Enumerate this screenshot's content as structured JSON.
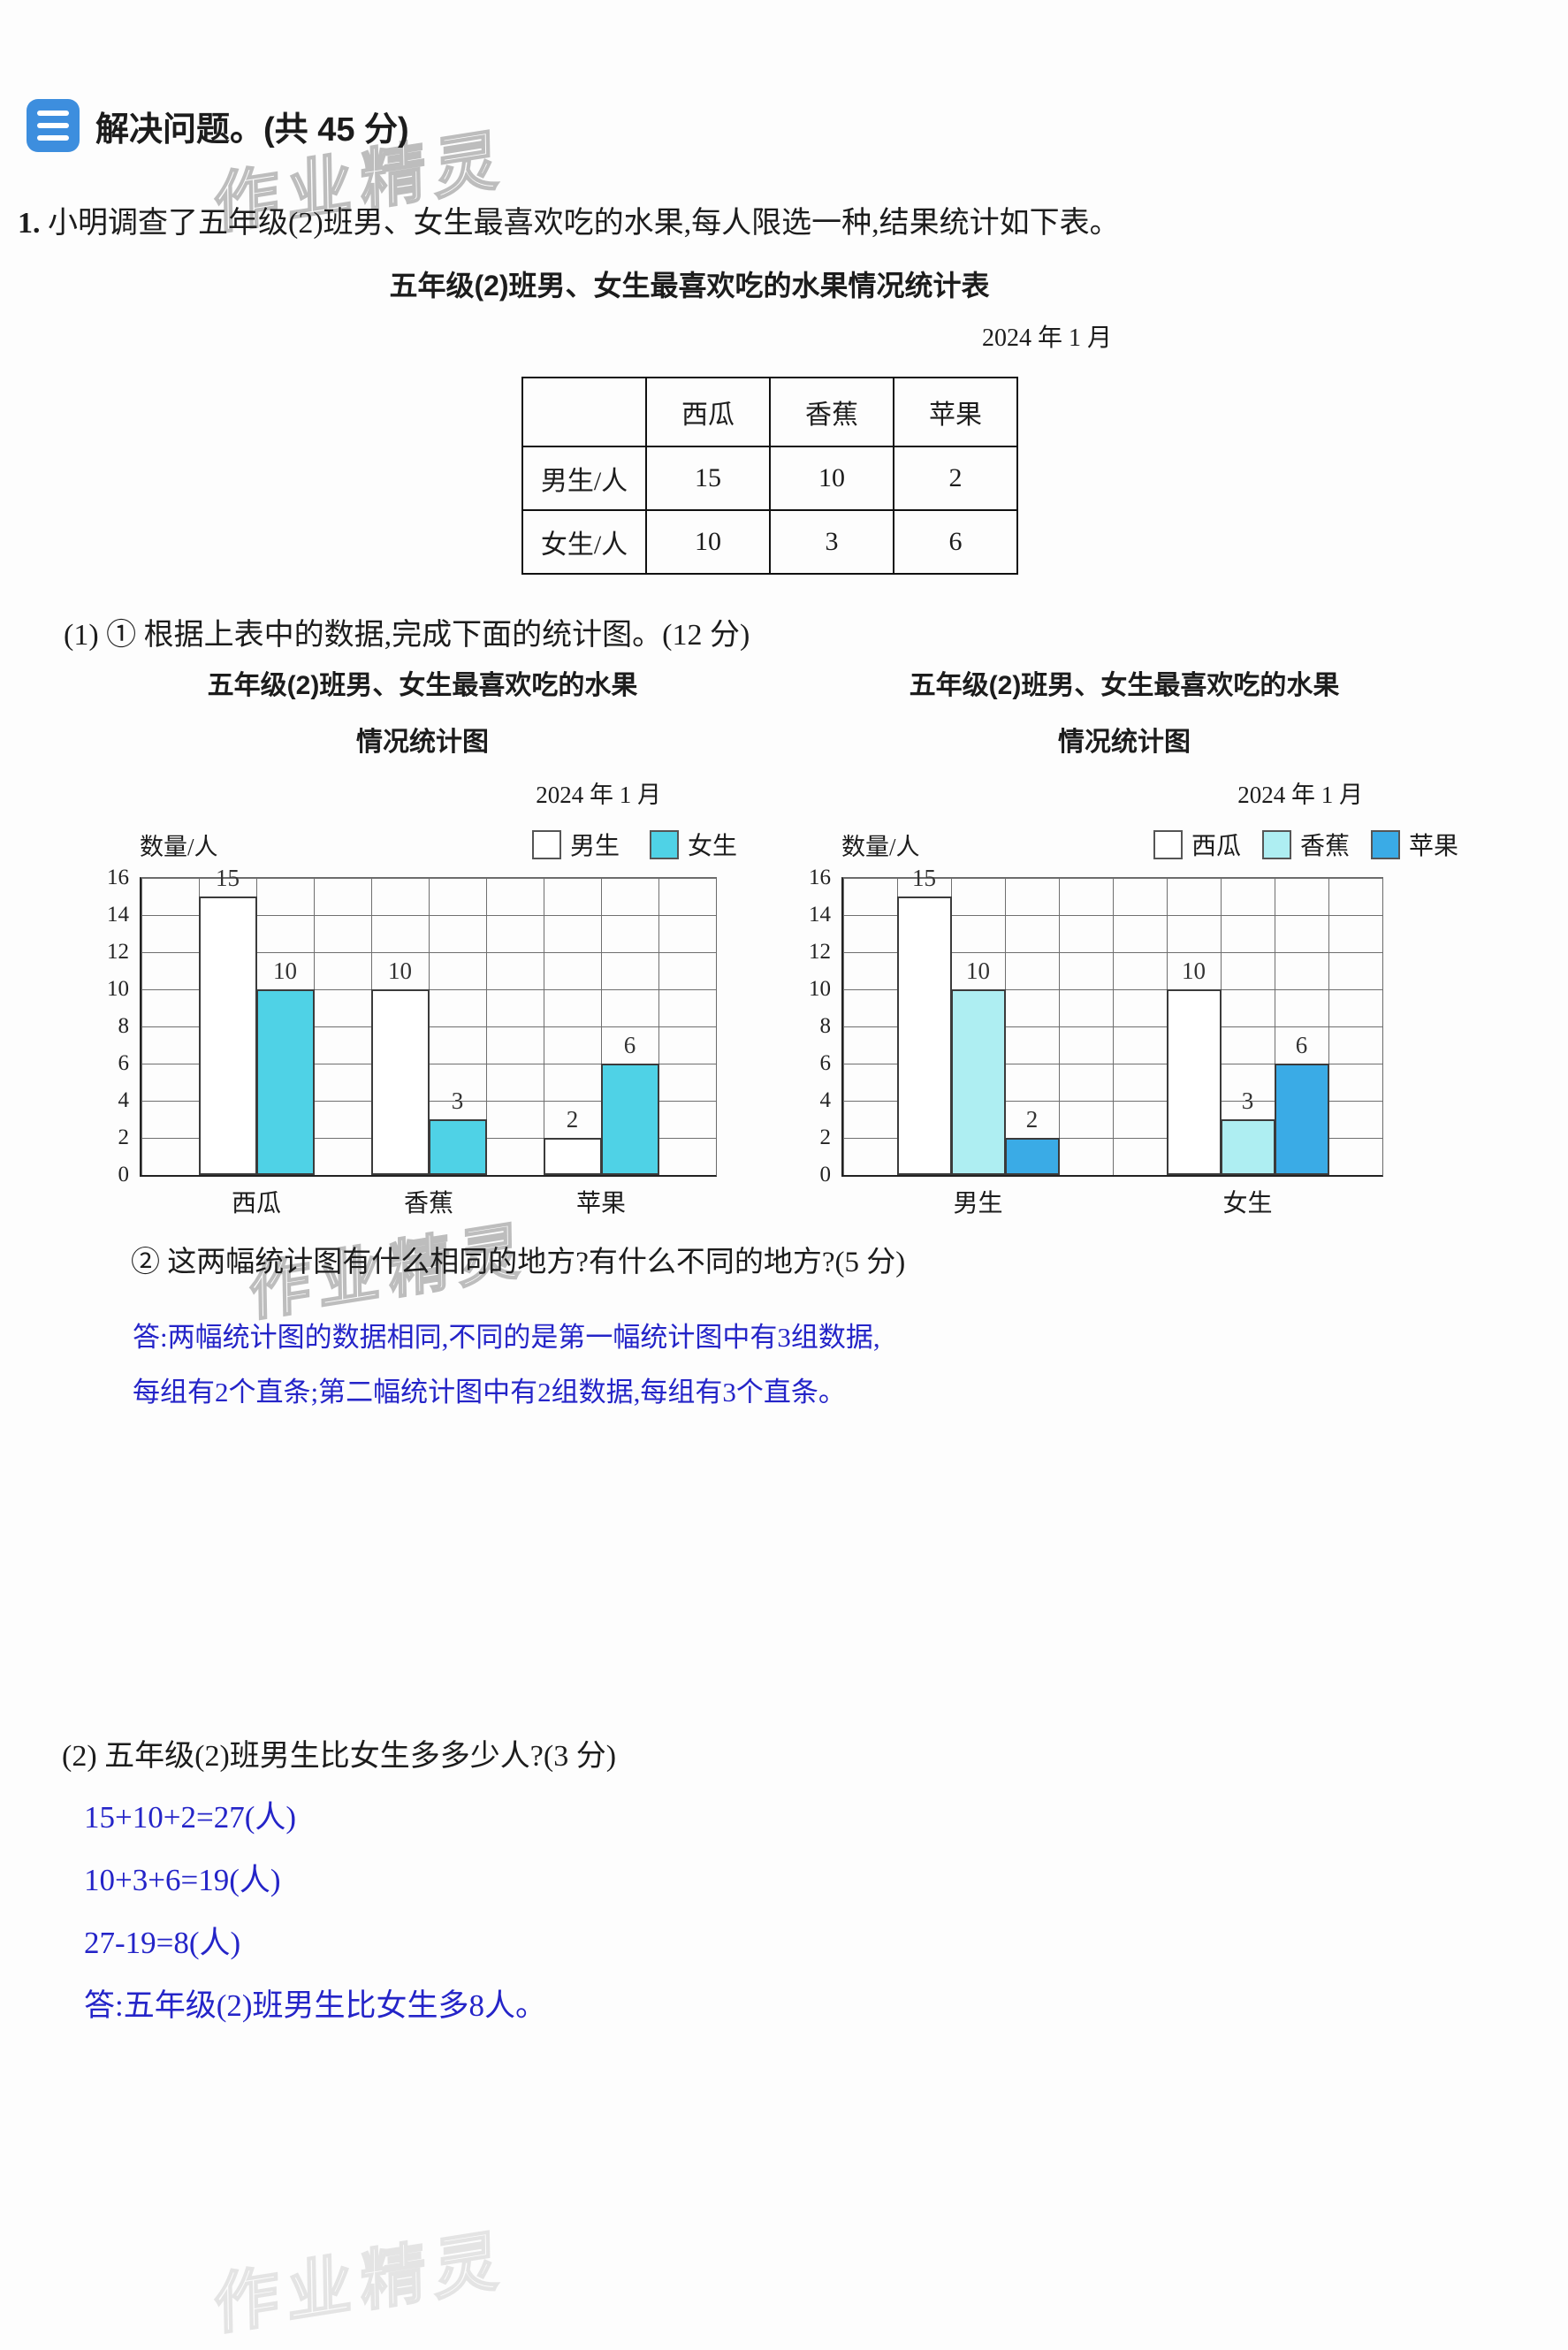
{
  "watermark": {
    "text": "作业精灵"
  },
  "section_header": {
    "title": "解决问题。(共 45 分)",
    "icon_color": "#3d8ede"
  },
  "question1": {
    "number": "1.",
    "text": "小明调查了五年级(2)班男、女生最喜欢吃的水果,每人限选一种,结果统计如下表。",
    "table": {
      "title": "五年级(2)班男、女生最喜欢吃的水果情况统计表",
      "date": "2024 年 1 月",
      "col_headers": [
        "",
        "西瓜",
        "香蕉",
        "苹果"
      ],
      "rows": [
        {
          "label": "男生/人",
          "values": [
            "15",
            "10",
            "2"
          ]
        },
        {
          "label": "女生/人",
          "values": [
            "10",
            "3",
            "6"
          ]
        }
      ]
    },
    "sub1_label": "(1) ① 根据上表中的数据,完成下面的统计图。(12 分)",
    "sub2_label": "② 这两幅统计图有什么相同的地方?有什么不同的地方?(5 分)",
    "sub2_answer_lines": [
      "答:两幅统计图的数据相同,不同的是第一幅统计图中有3组数据,",
      "每组有2个直条;第二幅统计图中有2组数据,每组有3个直条。"
    ],
    "answer_color": "#2424c8"
  },
  "chart_data": [
    {
      "type": "bar",
      "title_line1": "五年级(2)班男、女生最喜欢吃的水果",
      "title_line2": "情况统计图",
      "date": "2024 年 1 月",
      "ylabel": "数量/人",
      "ylim": [
        0,
        16
      ],
      "ytick": 2,
      "grid": true,
      "legend_position": "top",
      "categories": [
        "西瓜",
        "香蕉",
        "苹果"
      ],
      "series": [
        {
          "name": "男生",
          "color": "#ffffff",
          "values": [
            15,
            10,
            2
          ]
        },
        {
          "name": "女生",
          "color": "#4fd2e6",
          "values": [
            10,
            3,
            6
          ]
        }
      ]
    },
    {
      "type": "bar",
      "title_line1": "五年级(2)班男、女生最喜欢吃的水果",
      "title_line2": "情况统计图",
      "date": "2024 年 1 月",
      "ylabel": "数量/人",
      "ylim": [
        0,
        16
      ],
      "ytick": 2,
      "grid": true,
      "legend_position": "top",
      "categories": [
        "男生",
        "女生"
      ],
      "series": [
        {
          "name": "西瓜",
          "color": "#ffffff",
          "values": [
            15,
            10
          ]
        },
        {
          "name": "香蕉",
          "color": "#aeeef2",
          "values": [
            10,
            3
          ]
        },
        {
          "name": "苹果",
          "color": "#3aabe6",
          "values": [
            2,
            6
          ]
        }
      ]
    }
  ],
  "question2": {
    "label": "(2) 五年级(2)班男生比女生多多少人?(3 分)",
    "work_lines": [
      "15+10+2=27(人)",
      "10+3+6=19(人)",
      "27-19=8(人)"
    ],
    "answer": "答:五年级(2)班男生比女生多8人。"
  }
}
